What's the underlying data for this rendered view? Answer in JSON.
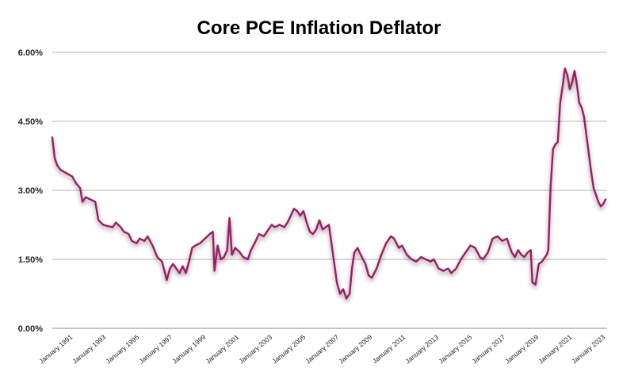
{
  "chart_data": {
    "type": "line",
    "title": "Core PCE Inflation Deflator",
    "xlabel": "",
    "ylabel": "",
    "ylim": [
      0,
      6
    ],
    "y_ticks": [
      "0.00%",
      "1.50%",
      "3.00%",
      "4.50%",
      "6.00%"
    ],
    "y_tick_values": [
      0,
      1.5,
      3.0,
      4.5,
      6.0
    ],
    "x_ticks": [
      "January 1991",
      "January 1993",
      "January 1995",
      "January 1997",
      "January 1999",
      "January 2001",
      "January 2003",
      "January 2005",
      "January 2007",
      "January 2009",
      "January 2011",
      "January 2013",
      "January 2015",
      "January 2017",
      "January 2019",
      "January 2021",
      "January 2023"
    ],
    "x_tick_values": [
      1991,
      1993,
      1995,
      1997,
      1999,
      2001,
      2003,
      2005,
      2007,
      2009,
      2011,
      2013,
      2015,
      2017,
      2019,
      2021,
      2023
    ],
    "xlim": [
      1991.0,
      2024.5
    ],
    "grid": true,
    "line_color": "#9c1e64",
    "series": [
      {
        "values": [
          [
            1991.0,
            4.15
          ],
          [
            1991.15,
            3.7
          ],
          [
            1991.3,
            3.55
          ],
          [
            1991.5,
            3.45
          ],
          [
            1991.75,
            3.4
          ],
          [
            1992.0,
            3.35
          ],
          [
            1992.25,
            3.3
          ],
          [
            1992.5,
            3.15
          ],
          [
            1992.75,
            3.05
          ],
          [
            1992.9,
            2.75
          ],
          [
            1993.1,
            2.85
          ],
          [
            1993.4,
            2.8
          ],
          [
            1993.7,
            2.75
          ],
          [
            1993.9,
            2.35
          ],
          [
            1994.2,
            2.25
          ],
          [
            1994.5,
            2.22
          ],
          [
            1994.8,
            2.2
          ],
          [
            1995.0,
            2.3
          ],
          [
            1995.3,
            2.2
          ],
          [
            1995.5,
            2.1
          ],
          [
            1995.8,
            2.05
          ],
          [
            1996.0,
            1.9
          ],
          [
            1996.3,
            1.85
          ],
          [
            1996.5,
            1.95
          ],
          [
            1996.8,
            1.9
          ],
          [
            1997.0,
            2.0
          ],
          [
            1997.3,
            1.8
          ],
          [
            1997.6,
            1.55
          ],
          [
            1997.9,
            1.45
          ],
          [
            1998.05,
            1.25
          ],
          [
            1998.2,
            1.05
          ],
          [
            1998.4,
            1.3
          ],
          [
            1998.6,
            1.4
          ],
          [
            1998.8,
            1.3
          ],
          [
            1999.0,
            1.2
          ],
          [
            1999.2,
            1.35
          ],
          [
            1999.4,
            1.2
          ],
          [
            1999.6,
            1.45
          ],
          [
            1999.8,
            1.75
          ],
          [
            2000.0,
            1.8
          ],
          [
            2000.3,
            1.85
          ],
          [
            2000.6,
            1.95
          ],
          [
            2000.9,
            2.05
          ],
          [
            2001.1,
            2.1
          ],
          [
            2001.2,
            1.25
          ],
          [
            2001.4,
            1.8
          ],
          [
            2001.6,
            1.5
          ],
          [
            2001.8,
            1.55
          ],
          [
            2002.0,
            1.7
          ],
          [
            2002.15,
            2.4
          ],
          [
            2002.3,
            1.6
          ],
          [
            2002.5,
            1.75
          ],
          [
            2002.8,
            1.65
          ],
          [
            2003.0,
            1.55
          ],
          [
            2003.3,
            1.5
          ],
          [
            2003.5,
            1.7
          ],
          [
            2003.8,
            1.9
          ],
          [
            2004.0,
            2.05
          ],
          [
            2004.3,
            2.0
          ],
          [
            2004.5,
            2.1
          ],
          [
            2004.8,
            2.25
          ],
          [
            2005.0,
            2.2
          ],
          [
            2005.3,
            2.25
          ],
          [
            2005.6,
            2.2
          ],
          [
            2005.8,
            2.3
          ],
          [
            2006.0,
            2.45
          ],
          [
            2006.2,
            2.6
          ],
          [
            2006.4,
            2.55
          ],
          [
            2006.6,
            2.45
          ],
          [
            2006.8,
            2.55
          ],
          [
            2007.0,
            2.3
          ],
          [
            2007.2,
            2.1
          ],
          [
            2007.4,
            2.05
          ],
          [
            2007.6,
            2.15
          ],
          [
            2007.8,
            2.35
          ],
          [
            2008.0,
            2.15
          ],
          [
            2008.2,
            2.2
          ],
          [
            2008.4,
            2.25
          ],
          [
            2008.5,
            2.0
          ],
          [
            2008.7,
            1.5
          ],
          [
            2008.9,
            1.0
          ],
          [
            2009.1,
            0.75
          ],
          [
            2009.3,
            0.85
          ],
          [
            2009.5,
            0.65
          ],
          [
            2009.7,
            0.75
          ],
          [
            2009.85,
            1.3
          ],
          [
            2010.0,
            1.65
          ],
          [
            2010.2,
            1.75
          ],
          [
            2010.4,
            1.6
          ],
          [
            2010.7,
            1.4
          ],
          [
            2010.9,
            1.15
          ],
          [
            2011.1,
            1.1
          ],
          [
            2011.4,
            1.3
          ],
          [
            2011.7,
            1.6
          ],
          [
            2012.0,
            1.85
          ],
          [
            2012.3,
            2.0
          ],
          [
            2012.5,
            1.95
          ],
          [
            2012.8,
            1.75
          ],
          [
            2013.0,
            1.8
          ],
          [
            2013.3,
            1.6
          ],
          [
            2013.6,
            1.5
          ],
          [
            2013.9,
            1.45
          ],
          [
            2014.2,
            1.55
          ],
          [
            2014.5,
            1.5
          ],
          [
            2014.8,
            1.45
          ],
          [
            2015.0,
            1.5
          ],
          [
            2015.3,
            1.3
          ],
          [
            2015.6,
            1.25
          ],
          [
            2015.9,
            1.3
          ],
          [
            2016.1,
            1.2
          ],
          [
            2016.4,
            1.3
          ],
          [
            2016.7,
            1.5
          ],
          [
            2017.0,
            1.65
          ],
          [
            2017.3,
            1.8
          ],
          [
            2017.6,
            1.75
          ],
          [
            2017.9,
            1.55
          ],
          [
            2018.1,
            1.5
          ],
          [
            2018.4,
            1.65
          ],
          [
            2018.7,
            1.95
          ],
          [
            2019.0,
            2.0
          ],
          [
            2019.3,
            1.9
          ],
          [
            2019.6,
            1.95
          ],
          [
            2019.9,
            1.65
          ],
          [
            2020.1,
            1.55
          ],
          [
            2020.3,
            1.7
          ],
          [
            2020.5,
            1.6
          ],
          [
            2020.7,
            1.55
          ],
          [
            2020.9,
            1.65
          ],
          [
            2021.1,
            1.7
          ],
          [
            2021.2,
            1.0
          ],
          [
            2021.4,
            0.95
          ],
          [
            2021.6,
            1.4
          ],
          [
            2021.8,
            1.45
          ],
          [
            2022.0,
            1.55
          ],
          [
            2022.1,
            1.6
          ],
          [
            2022.2,
            1.7
          ],
          [
            2022.35,
            3.1
          ],
          [
            2022.5,
            3.9
          ],
          [
            2022.65,
            4.0
          ],
          [
            2022.8,
            4.05
          ],
          [
            2022.95,
            4.9
          ],
          [
            2023.1,
            5.25
          ],
          [
            2023.25,
            5.65
          ],
          [
            2023.4,
            5.5
          ],
          [
            2023.55,
            5.2
          ],
          [
            2023.7,
            5.35
          ],
          [
            2023.85,
            5.6
          ],
          [
            2024.0,
            5.3
          ],
          [
            2024.15,
            4.9
          ],
          [
            2024.3,
            4.8
          ],
          [
            2024.45,
            4.6
          ],
          [
            2024.6,
            4.2
          ],
          [
            2024.75,
            3.8
          ],
          [
            2024.9,
            3.4
          ],
          [
            2025.05,
            3.05
          ],
          [
            2025.2,
            2.9
          ],
          [
            2025.35,
            2.75
          ],
          [
            2025.5,
            2.65
          ],
          [
            2025.65,
            2.7
          ],
          [
            2025.8,
            2.8
          ]
        ]
      }
    ]
  }
}
